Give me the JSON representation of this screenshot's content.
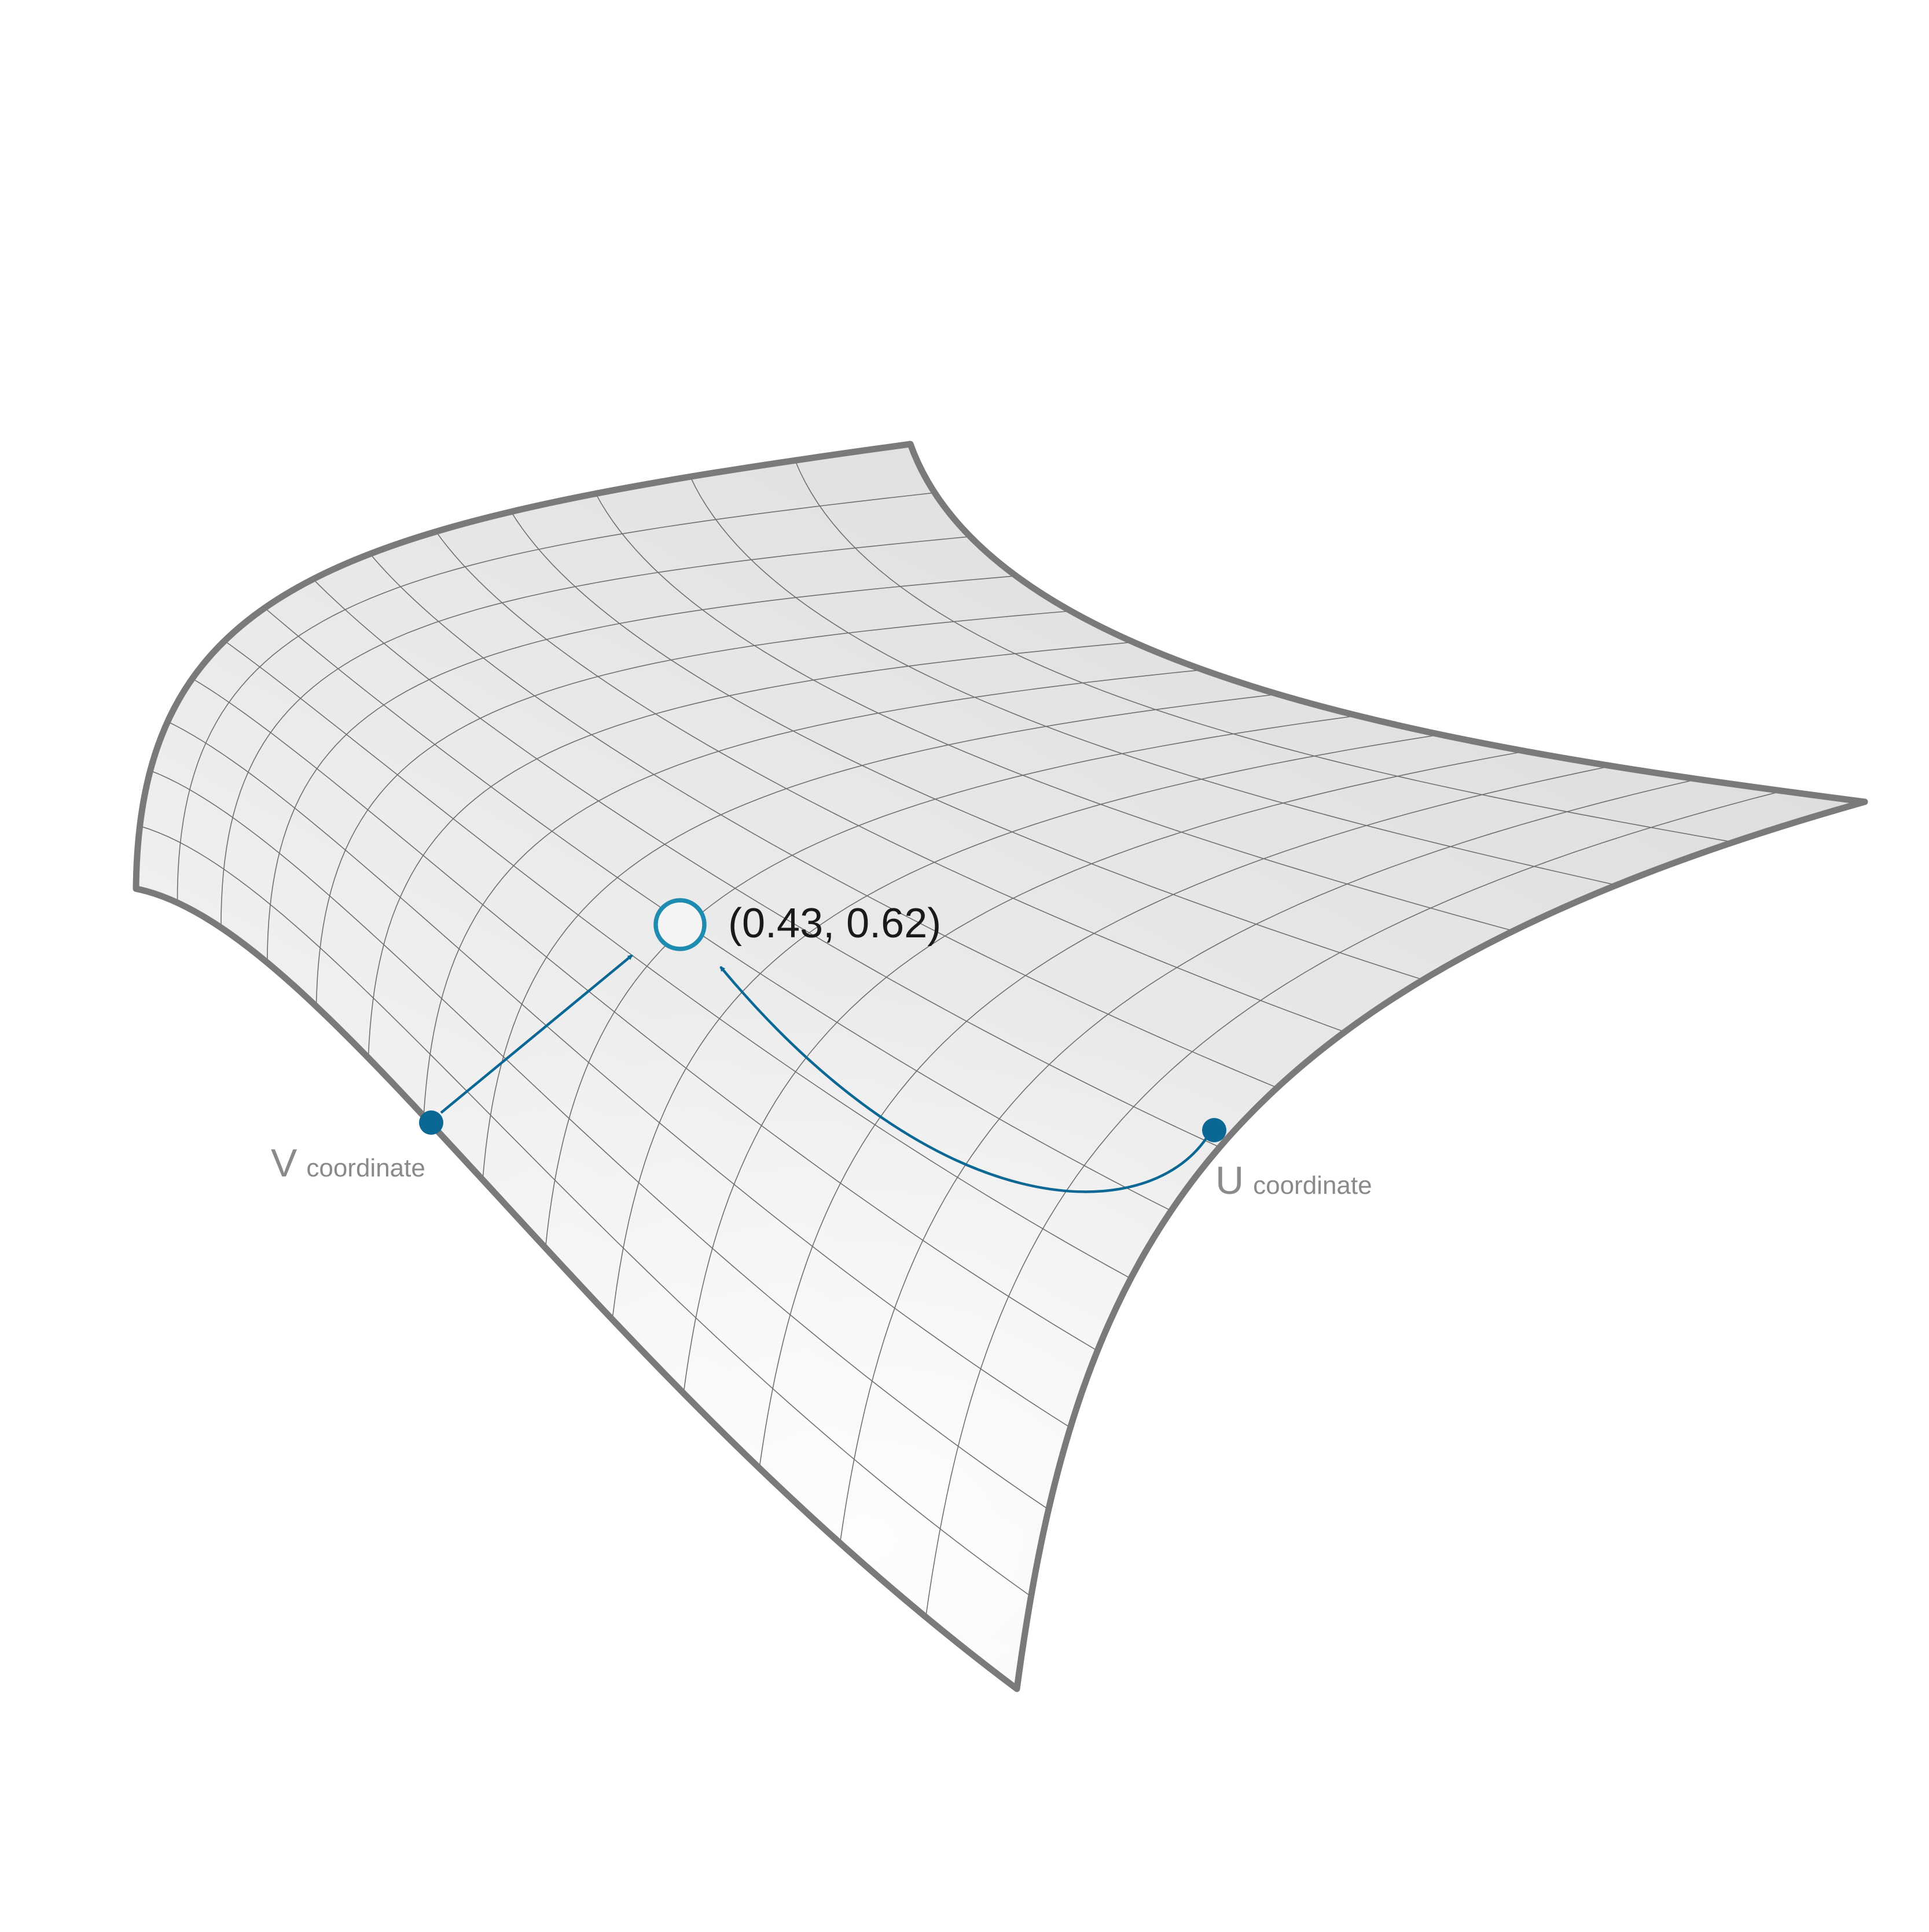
{
  "diagram": {
    "point": {
      "u": 0.43,
      "v": 0.62,
      "label": "(0.43, 0.62)"
    },
    "v_label": {
      "letter": "V",
      "word": "coordinate"
    },
    "u_label": {
      "letter": "U",
      "word": "coordinate"
    },
    "grid_divisions": 14,
    "colors": {
      "accent": "#0b6794",
      "point_ring": "#1e8bb0",
      "boundary": "#7a7a7a",
      "grid": "#6f6f6f",
      "surface_light": "#fbfbfb",
      "surface_dark": "#dedede"
    }
  }
}
